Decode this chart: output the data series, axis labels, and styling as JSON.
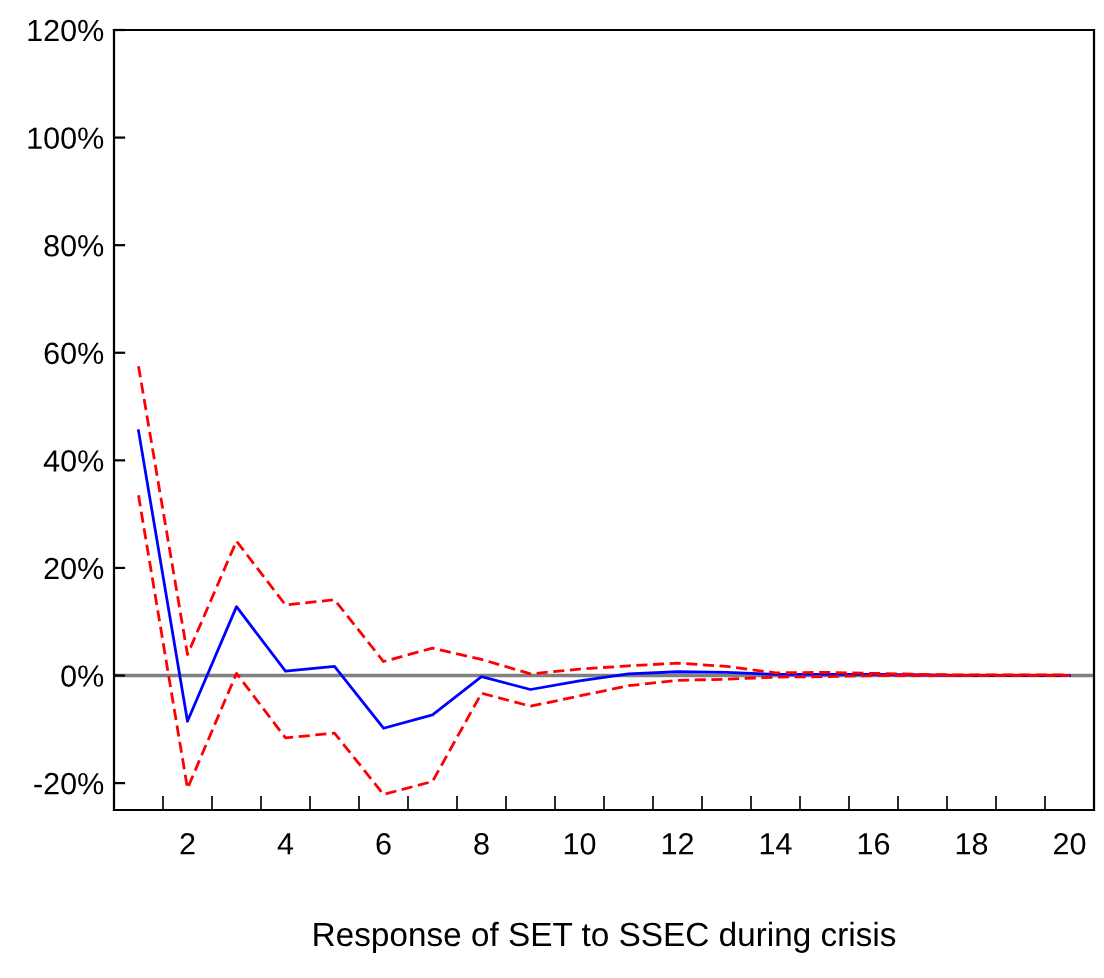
{
  "chart_data": {
    "type": "line",
    "xlabel": "Response of SET to SSEC during crisis",
    "categories": [
      null,
      "2",
      null,
      "4",
      null,
      "6",
      null,
      "8",
      null,
      "10",
      null,
      "12",
      null,
      "14",
      null,
      "16",
      null,
      "18",
      null,
      "20"
    ],
    "series": [
      {
        "color": "#0000ff",
        "line_style": "solid",
        "values": [
          45.5,
          -8.5,
          12.8,
          0.8,
          1.7,
          -9.8,
          -7.3,
          -0.2,
          -2.6,
          -1.0,
          0.3,
          0.7,
          0.6,
          0.2,
          0.2,
          0.2,
          0.1,
          0,
          0,
          0
        ]
      },
      {
        "color": "#ff0000",
        "line_style": "dashed",
        "values": [
          57.5,
          3.9,
          25,
          13.1,
          14.1,
          2.6,
          5.1,
          3.0,
          0.3,
          1.2,
          1.8,
          2.3,
          1.7,
          0.5,
          0.6,
          0.4,
          0.2,
          0.1,
          0.1,
          0.1
        ]
      },
      {
        "color": "#ff0000",
        "line_style": "dashed",
        "values": [
          33.5,
          -21,
          0.4,
          -11.6,
          -10.7,
          -22.1,
          -19.7,
          -3.3,
          -5.7,
          -3.8,
          -1.9,
          -0.9,
          -0.7,
          -0.3,
          -0.2,
          0,
          0,
          0,
          0,
          0
        ]
      }
    ],
    "ylim": [
      -25,
      120
    ],
    "yticks": [
      {
        "value": -20,
        "label": "-20%"
      },
      {
        "value": 0,
        "label": "0%"
      },
      {
        "value": 20,
        "label": "20%"
      },
      {
        "value": 40,
        "label": "40%"
      },
      {
        "value": 60,
        "label": "60%"
      },
      {
        "value": 80,
        "label": "80%"
      },
      {
        "value": 100,
        "label": "100%"
      },
      {
        "value": 120,
        "label": "120%"
      }
    ],
    "ref_lines": [
      {
        "axis": "y",
        "value": 0,
        "color": "#808080"
      }
    ],
    "grid": false,
    "legend": false,
    "marker": "none"
  }
}
